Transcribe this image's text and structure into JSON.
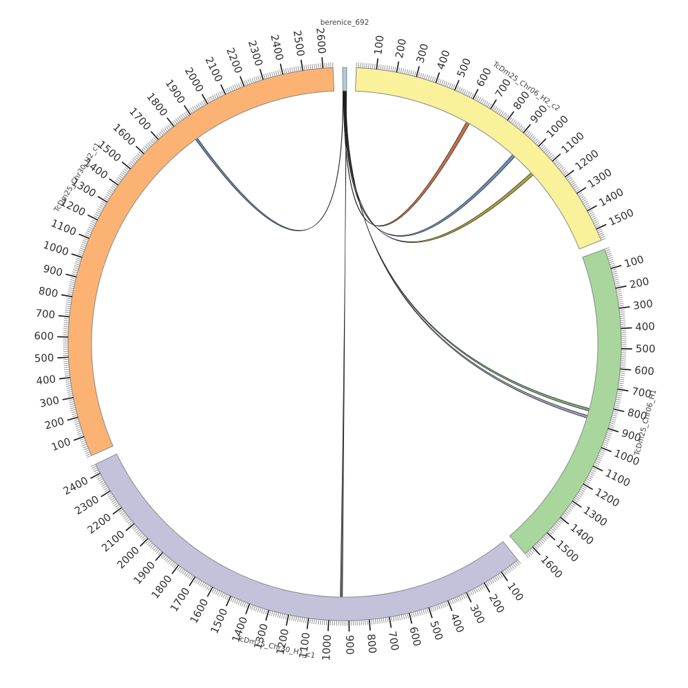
{
  "page": {
    "background": "#ffffff"
  },
  "chart_data": {
    "type": "chord",
    "title": "",
    "layout": {
      "direction": "clockwise",
      "start_angle_deg": 0,
      "gap_degrees": 2,
      "tick_interval_minor": 10,
      "tick_interval_major": 100,
      "grid": false,
      "legend": false
    },
    "segments": [
      {
        "id": "berenice_692",
        "label": "berenice_692",
        "display_length": 20,
        "color": "#aacee0",
        "tick_labels": false,
        "max_tick_label": null
      },
      {
        "id": "TcDm25_Chr06_H2_c2",
        "label": "TcDm25_Chr06_H2_c2",
        "display_length": 1560,
        "color": "#faf29b",
        "tick_labels": true,
        "max_tick_label": 1500
      },
      {
        "id": "TcDm25_Chr06_H1",
        "label": "TcDm25_Chr06_H1",
        "display_length": 1650,
        "color": "#a8d69c",
        "tick_labels": true,
        "max_tick_label": 1600
      },
      {
        "id": "TcDm25_Chr30_H1_c1",
        "label": "TcDm25_Chr30_H1_c1",
        "display_length": 2450,
        "color": "#c4c1db",
        "tick_labels": true,
        "max_tick_label": 2400
      },
      {
        "id": "TcDm25_Chr30_H2_c1",
        "label": "TcDm25_Chr30_H2_c1",
        "display_length": 2650,
        "color": "#fbb273",
        "tick_labels": true,
        "max_tick_label": 2600
      }
    ],
    "links": [
      {
        "source": "berenice_692",
        "source_span": [
          0,
          2
        ],
        "target": "TcDm25_Chr30_H2_c1",
        "target_span": [
          1848,
          1861
        ],
        "color": "#5b7fa3"
      },
      {
        "source": "berenice_692",
        "source_span": [
          3,
          5
        ],
        "target": "TcDm25_Chr06_H2_c2",
        "target_span": [
          626,
          645
        ],
        "color": "#c1683c"
      },
      {
        "source": "berenice_692",
        "source_span": [
          6,
          8
        ],
        "target": "TcDm25_Chr06_H2_c2",
        "target_span": [
          931,
          948
        ],
        "color": "#6488b0"
      },
      {
        "source": "berenice_692",
        "source_span": [
          9,
          11
        ],
        "target": "TcDm25_Chr06_H2_c2",
        "target_span": [
          1071,
          1088
        ],
        "color": "#aa9e30"
      },
      {
        "source": "berenice_692",
        "source_span": [
          12,
          14
        ],
        "target": "TcDm25_Chr06_H1",
        "target_span": [
          828,
          842
        ],
        "color": "#7aa078"
      },
      {
        "source": "berenice_692",
        "source_span": [
          15,
          17
        ],
        "target": "TcDm25_Chr06_H1",
        "target_span": [
          867,
          881
        ],
        "color": "#9694aa"
      },
      {
        "source": "berenice_692",
        "source_span": [
          18,
          20
        ],
        "target": "TcDm25_Chr30_H1_c1",
        "target_span": [
          933,
          945
        ],
        "color": "#606060"
      }
    ],
    "colors": {
      "band_outline": "#8f8f8f",
      "tick_minor": "#8a8a8a",
      "tick_major": "#1a1a1a",
      "tick_label": "#2e2e2e",
      "name_label": "#3f3f3f",
      "link_outline": "#1f1f1f"
    }
  }
}
